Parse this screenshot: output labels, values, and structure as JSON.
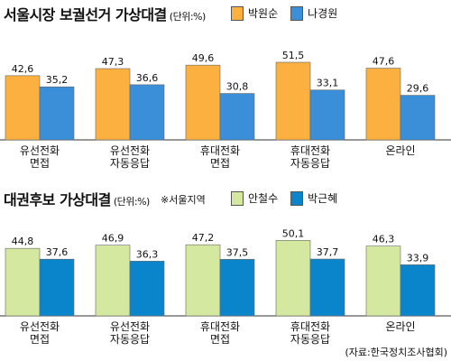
{
  "chart_data": [
    {
      "type": "bar",
      "title": "서울시장 보궐선거 가상대결",
      "unit": "(단위:%)",
      "categories": [
        [
          "유선전화",
          "면접"
        ],
        [
          "유선전화",
          "자동응답"
        ],
        [
          "휴대전화",
          "면접"
        ],
        [
          "휴대전화",
          "자동응답"
        ],
        [
          "온라인"
        ]
      ],
      "series": [
        {
          "name": "박원순",
          "color": "#fbb040",
          "values": [
            42.6,
            47.3,
            49.6,
            51.5,
            47.6
          ]
        },
        {
          "name": "나경원",
          "color": "#3a8fd8",
          "values": [
            35.2,
            36.6,
            30.8,
            33.1,
            29.6
          ]
        }
      ],
      "ylim": [
        0,
        60
      ],
      "grid": false
    },
    {
      "type": "bar",
      "title": "대권후보 가상대결",
      "unit": "(단위:%)",
      "region": "※서울지역",
      "categories": [
        [
          "유선전화",
          "면접"
        ],
        [
          "유선전화",
          "자동응답"
        ],
        [
          "휴대전화",
          "면접"
        ],
        [
          "휴대전화",
          "자동응답"
        ],
        [
          "온라인"
        ]
      ],
      "series": [
        {
          "name": "안철수",
          "color": "#d5e8a0",
          "values": [
            44.8,
            46.9,
            47.2,
            50.1,
            46.3
          ]
        },
        {
          "name": "박근혜",
          "color": "#0a85cc",
          "values": [
            37.6,
            36.3,
            37.5,
            37.7,
            33.9
          ]
        }
      ],
      "ylim": [
        0,
        60
      ],
      "grid": false
    }
  ],
  "source": "(자료:한국정치조사협회)"
}
